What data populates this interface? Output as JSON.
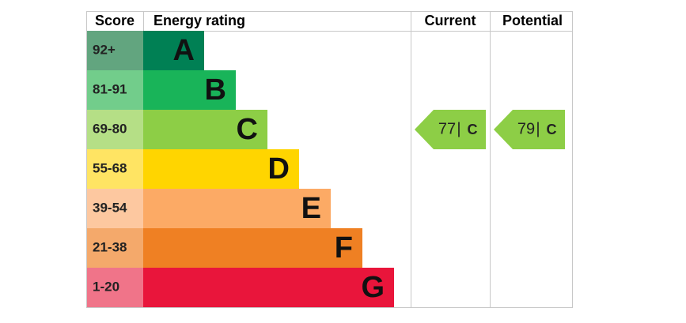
{
  "chart_data": {
    "type": "epc",
    "headers": {
      "score": "Score",
      "rating": "Energy rating",
      "current": "Current",
      "potential": "Potential"
    },
    "bands": [
      {
        "score": "92+",
        "letter": "A",
        "color": "#008054",
        "score_color": "#62a57f"
      },
      {
        "score": "81-91",
        "letter": "B",
        "color": "#19b459",
        "score_color": "#72cd8b"
      },
      {
        "score": "69-80",
        "letter": "C",
        "color": "#8dce46",
        "score_color": "#b5df86"
      },
      {
        "score": "55-68",
        "letter": "D",
        "color": "#ffd500",
        "score_color": "#ffe463"
      },
      {
        "score": "39-54",
        "letter": "E",
        "color": "#fcaa65",
        "score_color": "#fdc8a0"
      },
      {
        "score": "21-38",
        "letter": "F",
        "color": "#ef8023",
        "score_color": "#f4a96b"
      },
      {
        "score": "1-20",
        "letter": "G",
        "color": "#e9153b",
        "score_color": "#f07489"
      }
    ],
    "separator": "|",
    "current": {
      "value": 77,
      "letter": "C"
    },
    "potential": {
      "value": 79,
      "letter": "C"
    }
  }
}
